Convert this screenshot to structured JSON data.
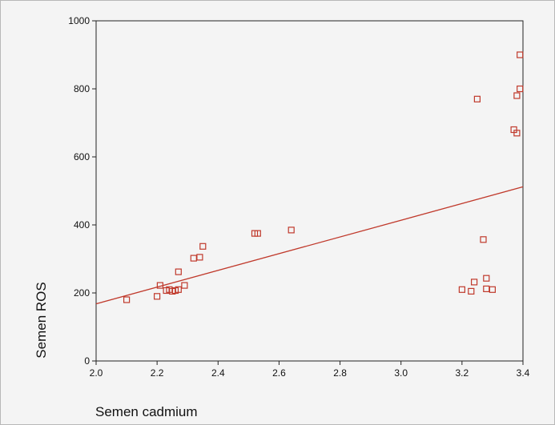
{
  "chart_data": {
    "type": "scatter",
    "title": "",
    "xlabel": "Semen cadmium",
    "ylabel": "Semen ROS",
    "xlim": [
      2.0,
      3.4
    ],
    "ylim": [
      0,
      1000
    ],
    "x_ticks": [
      "2.0",
      "2.2",
      "2.4",
      "2.6",
      "2.8",
      "3.0",
      "3.2",
      "3.4"
    ],
    "y_ticks": [
      "0",
      "200",
      "400",
      "600",
      "800",
      "1000"
    ],
    "grid": false,
    "legend": "none",
    "marker_color": "#c0392b",
    "line_color": "#c0392b",
    "background_color": "#f4f4f4",
    "points": [
      {
        "x": 2.1,
        "y": 180
      },
      {
        "x": 2.2,
        "y": 190
      },
      {
        "x": 2.21,
        "y": 222
      },
      {
        "x": 2.23,
        "y": 207
      },
      {
        "x": 2.24,
        "y": 210
      },
      {
        "x": 2.25,
        "y": 205
      },
      {
        "x": 2.26,
        "y": 207
      },
      {
        "x": 2.27,
        "y": 210
      },
      {
        "x": 2.27,
        "y": 262
      },
      {
        "x": 2.29,
        "y": 222
      },
      {
        "x": 2.32,
        "y": 302
      },
      {
        "x": 2.34,
        "y": 305
      },
      {
        "x": 2.35,
        "y": 337
      },
      {
        "x": 2.52,
        "y": 375
      },
      {
        "x": 2.53,
        "y": 375
      },
      {
        "x": 2.64,
        "y": 385
      },
      {
        "x": 3.2,
        "y": 210
      },
      {
        "x": 3.23,
        "y": 205
      },
      {
        "x": 3.24,
        "y": 232
      },
      {
        "x": 3.25,
        "y": 770
      },
      {
        "x": 3.27,
        "y": 357
      },
      {
        "x": 3.28,
        "y": 243
      },
      {
        "x": 3.28,
        "y": 212
      },
      {
        "x": 3.3,
        "y": 210
      },
      {
        "x": 3.37,
        "y": 680
      },
      {
        "x": 3.38,
        "y": 670
      },
      {
        "x": 3.38,
        "y": 780
      },
      {
        "x": 3.39,
        "y": 800
      },
      {
        "x": 3.39,
        "y": 900
      }
    ],
    "fit_line": {
      "x": [
        2.0,
        3.4
      ],
      "y": [
        168,
        512
      ]
    }
  }
}
